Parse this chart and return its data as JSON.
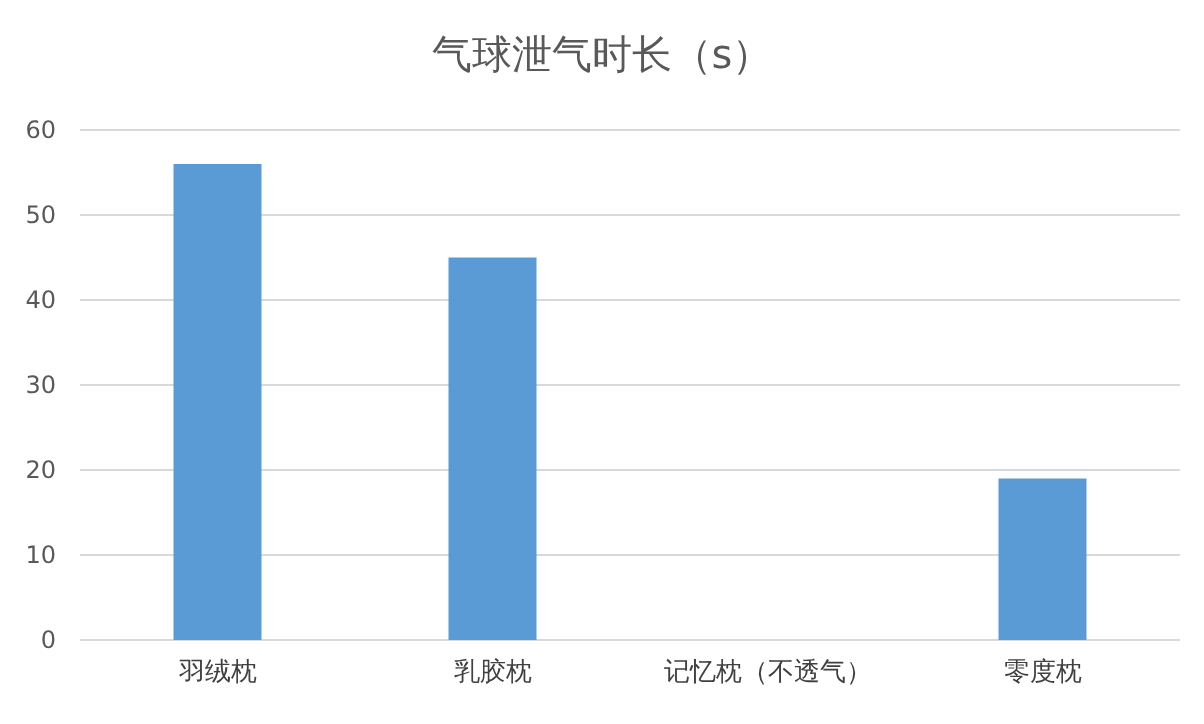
{
  "chart_data": {
    "type": "bar",
    "title": "气球泄气时长（s）",
    "categories": [
      "羽绒枕",
      "乳胶枕",
      "记忆枕（不透气）",
      "零度枕"
    ],
    "values": [
      56,
      45,
      0,
      19
    ],
    "color": "#5b9bd5",
    "ylim": [
      0,
      60
    ],
    "yticks": [
      0,
      10,
      20,
      30,
      40,
      50,
      60
    ],
    "grid": "y"
  }
}
